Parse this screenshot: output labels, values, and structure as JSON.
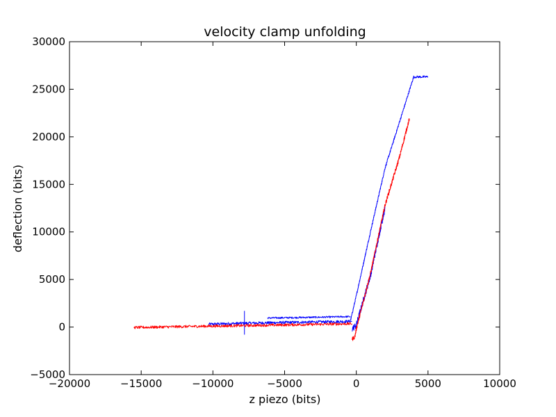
{
  "chart_data": {
    "type": "line",
    "title": "velocity clamp unfolding",
    "xlabel": "z piezo (bits)",
    "ylabel": "deflection (bits)",
    "xlim": [
      -20000,
      10000
    ],
    "ylim": [
      -5000,
      30000
    ],
    "xticks": [
      -20000,
      -15000,
      -10000,
      -5000,
      0,
      5000,
      10000
    ],
    "yticks": [
      -5000,
      0,
      5000,
      10000,
      15000,
      20000,
      25000,
      30000
    ],
    "xtick_labels": [
      "−20000",
      "−15000",
      "−10000",
      "−5000",
      "0",
      "5000",
      "10000"
    ],
    "ytick_labels": [
      "−5000",
      "0",
      "5000",
      "10000",
      "15000",
      "20000",
      "25000",
      "30000"
    ],
    "grid": false,
    "legend": "none",
    "series": [
      {
        "color": "#0000ff",
        "segments": [
          {
            "x": [
              -10300,
              -7800,
              -5000,
              -2000,
              -300
            ],
            "y": [
              300,
              400,
              480,
              550,
              600
            ],
            "noise": 150
          },
          {
            "x": [
              -6200,
              -4000,
              -2000,
              -400
            ],
            "y": [
              950,
              1000,
              1050,
              1100
            ],
            "noise": 90
          },
          {
            "x": [
              -400,
              0,
              1000,
              2000,
              3000,
              4000,
              5000
            ],
            "y": [
              700,
              3300,
              10100,
              16700,
              21500,
              26300,
              26300
            ],
            "noise": 120
          },
          {
            "x": [
              -300,
              0,
              1000,
              1600,
              2000
            ],
            "y": [
              -200,
              200,
              5500,
              9800,
              12500
            ],
            "noise": 350
          },
          {
            "x": [
              -7800,
              -7800
            ],
            "y": [
              -800,
              1700
            ],
            "noise": 0
          }
        ]
      },
      {
        "color": "#ff0000",
        "segments": [
          {
            "x": [
              -15500,
              -12000,
              -8000,
              -4000,
              -300
            ],
            "y": [
              -50,
              50,
              150,
              250,
              350
            ],
            "noise": 140
          },
          {
            "x": [
              -300,
              -100,
              0,
              1000,
              2000,
              3000,
              3700
            ],
            "y": [
              -1300,
              -1000,
              -200,
              5700,
              12800,
              17800,
              21900
            ],
            "noise": 220
          }
        ]
      }
    ]
  }
}
